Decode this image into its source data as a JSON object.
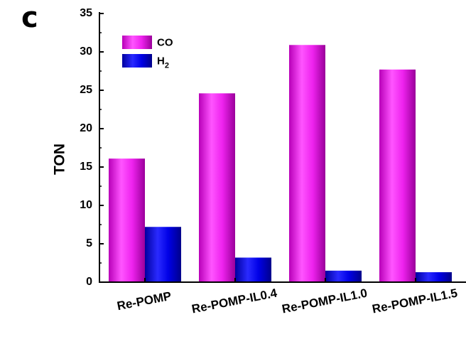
{
  "panel_label": "c",
  "chart_data": {
    "type": "bar",
    "categories": [
      "Re-POMP",
      "Re-POMP-IL0.4",
      "Re-POMP-IL1.0",
      "Re-POMP-IL1.5"
    ],
    "series": [
      {
        "name": "CO",
        "color": "#e600e6",
        "values": [
          16.1,
          24.6,
          30.9,
          27.7
        ]
      },
      {
        "name": "H2",
        "color": "#0000e0",
        "values": [
          7.2,
          3.2,
          1.5,
          1.3
        ]
      }
    ],
    "ylabel": "TON",
    "xlabel": "",
    "ylim": [
      0,
      35
    ],
    "yticks": [
      0,
      5,
      10,
      15,
      20,
      25,
      30,
      35
    ],
    "legend_position": "top-left",
    "grid": false
  }
}
